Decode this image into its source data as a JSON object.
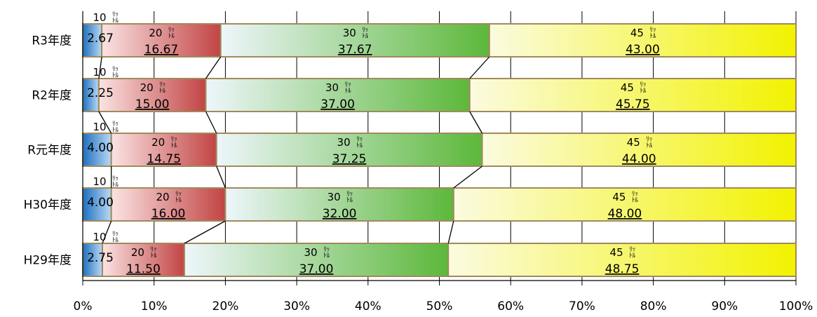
{
  "chart_data": {
    "type": "bar",
    "orientation": "horizontal",
    "stacked": "percent",
    "categories": [
      "R3年度",
      "R2年度",
      "R元年度",
      "H30年度",
      "H29年度"
    ],
    "series": [
      {
        "name": "10ﾘｯﾄﾙ",
        "values": [
          2.67,
          2.25,
          4.0,
          4.0,
          2.75
        ],
        "color": "#3a83cc"
      },
      {
        "name": "20ﾘｯﾄﾙ",
        "values": [
          16.67,
          15.0,
          14.75,
          16.0,
          11.5
        ],
        "color": "#c64a4a"
      },
      {
        "name": "30ﾘｯﾄﾙ",
        "values": [
          37.67,
          37.0,
          37.25,
          32.0,
          37.0
        ],
        "color": "#5cb83a"
      },
      {
        "name": "45ﾘｯﾄﾙ",
        "values": [
          43.0,
          45.75,
          44.0,
          48.0,
          48.75
        ],
        "color": "#f2f200"
      }
    ],
    "value_labels": [
      [
        "2.67",
        "16.67",
        "37.67",
        "43.00"
      ],
      [
        "2.25",
        "15.00",
        "37.00",
        "45.75"
      ],
      [
        "4.00",
        "14.75",
        "37.25",
        "44.00"
      ],
      [
        "4.00",
        "16.00",
        "32.00",
        "48.00"
      ],
      [
        "2.75",
        "11.50",
        "37.00",
        "48.75"
      ]
    ],
    "x_ticks": [
      "0%",
      "10%",
      "20%",
      "30%",
      "40%",
      "50%",
      "60%",
      "70%",
      "80%",
      "90%",
      "100%"
    ],
    "xlim": [
      0,
      100
    ],
    "grid": true,
    "series_lines": true
  }
}
